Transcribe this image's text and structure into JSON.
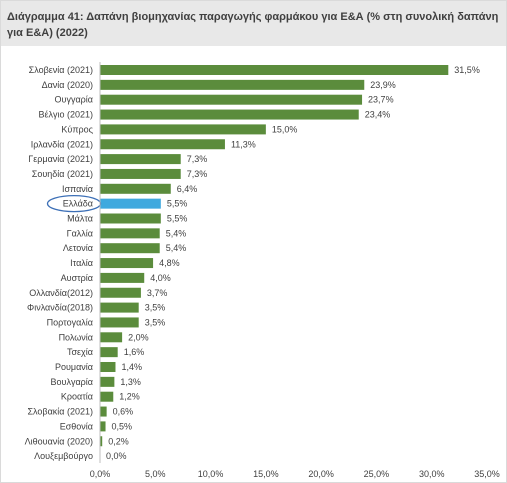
{
  "chart_data": {
    "type": "bar",
    "orientation": "horizontal",
    "title": "Διάγραμμα 41: Δαπάνη βιομηχανίας παραγωγής φαρμάκου για Ε&Α (% στη συνολική δαπάνη για Ε&Α) (2022)",
    "categories": [
      "Σλοβενία (2021)",
      "Δανία (2020)",
      "Ουγγαρία",
      "Βέλγιο (2021)",
      "Κύπρος",
      "Ιρλανδία (2021)",
      "Γερμανία (2021)",
      "Σουηδία (2021)",
      "Ισπανία",
      "Ελλάδα",
      "Μάλτα",
      "Γαλλία",
      "Λετονία",
      "Ιταλία",
      "Αυστρία",
      "Ολλανδία(2012)",
      "Φινλανδία(2018)",
      "Πορτογαλία",
      "Πολωνία",
      "Τσεχία",
      "Ρουμανία",
      "Βουλγαρία",
      "Κροατία",
      "Σλοβακία (2021)",
      "Εσθονία",
      "Λιθουανία (2020)",
      "Λουξεμβούργο"
    ],
    "values": [
      31.5,
      23.9,
      23.7,
      23.4,
      15.0,
      11.3,
      7.3,
      7.3,
      6.4,
      5.5,
      5.5,
      5.4,
      5.4,
      4.8,
      4.0,
      3.7,
      3.5,
      3.5,
      2.0,
      1.6,
      1.4,
      1.3,
      1.2,
      0.6,
      0.5,
      0.2,
      0.0
    ],
    "value_labels": [
      "31,5%",
      "23,9%",
      "23,7%",
      "23,4%",
      "15,0%",
      "11,3%",
      "7,3%",
      "7,3%",
      "6,4%",
      "5,5%",
      "5,5%",
      "5,4%",
      "5,4%",
      "4,8%",
      "4,0%",
      "3,7%",
      "3,5%",
      "3,5%",
      "2,0%",
      "1,6%",
      "1,4%",
      "1,3%",
      "1,2%",
      "0,6%",
      "0,5%",
      "0,2%",
      "0,0%"
    ],
    "xlim": [
      0,
      35
    ],
    "x_ticks": [
      0,
      5,
      10,
      15,
      20,
      25,
      30,
      35
    ],
    "x_tick_labels": [
      "0,0%",
      "5,0%",
      "10,0%",
      "15,0%",
      "20,0%",
      "25,0%",
      "30,0%",
      "35,0%"
    ],
    "grid": false,
    "legend": false,
    "highlight": "Ελλάδα",
    "colors": {
      "bar": "#5b8c3c",
      "highlight_bar": "#3fa9de",
      "highlight_outline": "#3c6fb6",
      "axis": "#bfbfbf"
    }
  }
}
